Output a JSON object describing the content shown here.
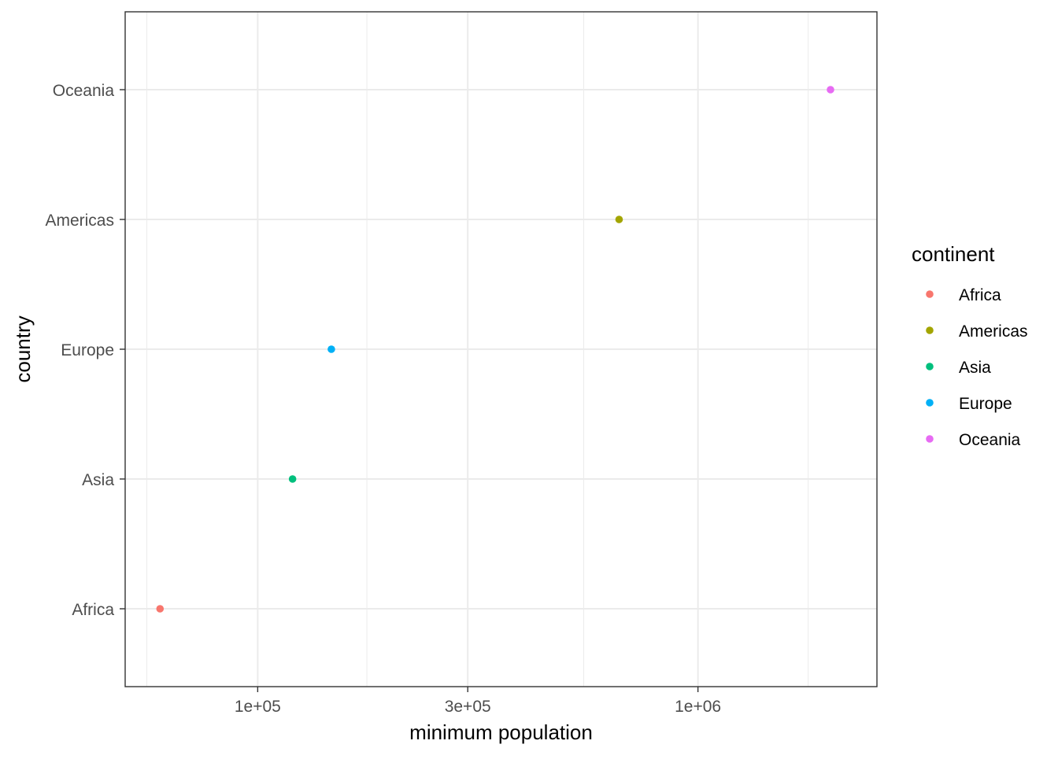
{
  "chart_data": {
    "type": "scatter",
    "xlabel": "minimum population",
    "ylabel": "country",
    "x_scale": "log10",
    "x_ticks": [
      {
        "value": 100000,
        "label": "1e+05"
      },
      {
        "value": 300000,
        "label": "3e+05"
      },
      {
        "value": 1000000,
        "label": "1e+06"
      }
    ],
    "x_minor_ticks": [
      56000,
      177000,
      550000,
      1780000
    ],
    "xlim": [
      50000,
      2550000
    ],
    "categories": [
      "Africa",
      "Asia",
      "Europe",
      "Americas",
      "Oceania"
    ],
    "points": [
      {
        "category": "Africa",
        "x": 60000,
        "color": "#F8766D"
      },
      {
        "category": "Asia",
        "x": 120000,
        "color": "#00BF7D"
      },
      {
        "category": "Europe",
        "x": 147000,
        "color": "#00B0F6"
      },
      {
        "category": "Americas",
        "x": 662000,
        "color": "#A3A500"
      },
      {
        "category": "Oceania",
        "x": 2000000,
        "color": "#E76BF3"
      }
    ],
    "legend": {
      "title": "continent",
      "position": "right",
      "entries": [
        {
          "label": "Africa",
          "color": "#F8766D"
        },
        {
          "label": "Americas",
          "color": "#A3A500"
        },
        {
          "label": "Asia",
          "color": "#00BF7D"
        },
        {
          "label": "Europe",
          "color": "#00B0F6"
        },
        {
          "label": "Oceania",
          "color": "#E76BF3"
        }
      ]
    },
    "grid": true,
    "theme": "bw"
  }
}
